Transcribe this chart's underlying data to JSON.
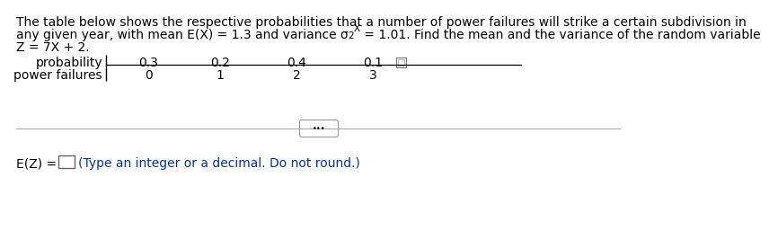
{
  "bg_color": "#ffffff",
  "text_color": "#000000",
  "blue_color": "#003399",
  "gray_color": "#888888",
  "line1": "The table below shows the respective probabilities that a number of power failures will strike a certain subdivision in",
  "line2_pre": "any given year, with mean E(X) = 1.3 and variance σ",
  "line2_sup": "2",
  "line2_sub": "X",
  "line2_post": " = 1.01. Find the mean and the variance of the random variable",
  "line3": "Z = 7X + 2.",
  "row1_label": "probability",
  "row2_label": "power failures",
  "row1_vals": [
    "0.3",
    "0.2",
    "0.4",
    "0.1"
  ],
  "row2_vals": [
    "0",
    "1",
    "2",
    "3"
  ],
  "ez_prefix": "E(Z) =",
  "ez_hint": "(Type an integer or a decimal. Do not round.)",
  "font_size": 10.0,
  "small_font": 7.5
}
